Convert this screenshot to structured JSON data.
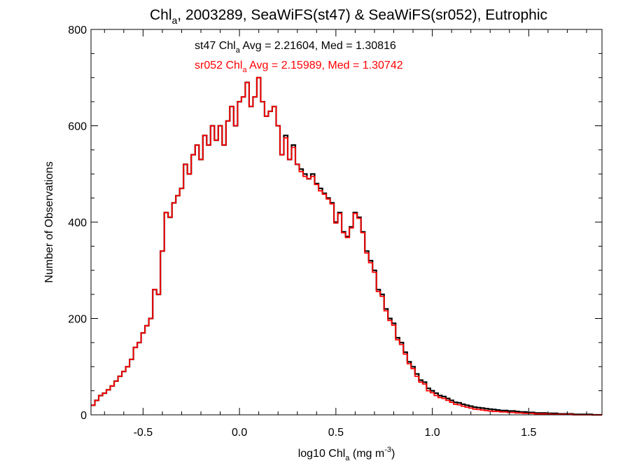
{
  "chart_data": {
    "type": "line",
    "title": {
      "pre": "Chl",
      "sub": "a",
      "post": ", 2003289, SeaWiFS(st47) & SeaWiFS(sr052), Eutrophic"
    },
    "xlabel": {
      "pre": "log10 Chl",
      "sub": "a",
      "mid": " (mg m",
      "sup": "-3",
      "post": ")"
    },
    "ylabel": "Number of Observations",
    "xlim": [
      -0.77,
      1.88
    ],
    "ylim": [
      0,
      800
    ],
    "x_ticks": [
      -0.5,
      0.0,
      0.5,
      1.0,
      1.5
    ],
    "x_tick_labels": [
      "-0.5",
      "0.0",
      "0.5",
      "1.0",
      "1.5"
    ],
    "y_ticks": [
      0,
      200,
      400,
      600,
      800
    ],
    "y_tick_labels": [
      "0",
      "200",
      "400",
      "600",
      "800"
    ],
    "grid": false,
    "bin_width": 0.01,
    "annotations": [
      {
        "name": "st47",
        "pre": "st47 Chl",
        "sub": "a",
        "post": " Avg = 2.21604, Med = 1.30816",
        "color": "#000000"
      },
      {
        "name": "sr052",
        "pre": "sr052 Chl",
        "sub": "a",
        "post": " Avg = 2.15989, Med = 1.30742",
        "color": "#ff0000"
      }
    ],
    "series": [
      {
        "color": "#000000",
        "points": [
          [
            -0.77,
            20
          ],
          [
            -0.75,
            30
          ],
          [
            -0.73,
            40
          ],
          [
            -0.71,
            45
          ],
          [
            -0.69,
            52
          ],
          [
            -0.67,
            60
          ],
          [
            -0.65,
            70
          ],
          [
            -0.63,
            80
          ],
          [
            -0.61,
            90
          ],
          [
            -0.59,
            100
          ],
          [
            -0.57,
            115
          ],
          [
            -0.55,
            140
          ],
          [
            -0.53,
            150
          ],
          [
            -0.51,
            170
          ],
          [
            -0.49,
            185
          ],
          [
            -0.47,
            200
          ],
          [
            -0.45,
            260
          ],
          [
            -0.43,
            250
          ],
          [
            -0.41,
            340
          ],
          [
            -0.39,
            420
          ],
          [
            -0.37,
            410
          ],
          [
            -0.35,
            440
          ],
          [
            -0.33,
            455
          ],
          [
            -0.31,
            470
          ],
          [
            -0.29,
            520
          ],
          [
            -0.27,
            500
          ],
          [
            -0.25,
            540
          ],
          [
            -0.23,
            560
          ],
          [
            -0.21,
            530
          ],
          [
            -0.19,
            580
          ],
          [
            -0.17,
            560
          ],
          [
            -0.15,
            600
          ],
          [
            -0.13,
            570
          ],
          [
            -0.11,
            600
          ],
          [
            -0.09,
            560
          ],
          [
            -0.07,
            610
          ],
          [
            -0.05,
            640
          ],
          [
            -0.03,
            600
          ],
          [
            -0.01,
            650
          ],
          [
            0.01,
            660
          ],
          [
            0.03,
            690
          ],
          [
            0.05,
            640
          ],
          [
            0.07,
            660
          ],
          [
            0.09,
            700
          ],
          [
            0.11,
            650
          ],
          [
            0.13,
            620
          ],
          [
            0.15,
            630
          ],
          [
            0.17,
            640
          ],
          [
            0.19,
            600
          ],
          [
            0.21,
            540
          ],
          [
            0.23,
            580
          ],
          [
            0.25,
            530
          ],
          [
            0.27,
            560
          ],
          [
            0.29,
            520
          ],
          [
            0.31,
            510
          ],
          [
            0.33,
            500
          ],
          [
            0.35,
            490
          ],
          [
            0.37,
            500
          ],
          [
            0.39,
            480
          ],
          [
            0.41,
            470
          ],
          [
            0.43,
            460
          ],
          [
            0.45,
            450
          ],
          [
            0.47,
            440
          ],
          [
            0.49,
            400
          ],
          [
            0.51,
            420
          ],
          [
            0.53,
            380
          ],
          [
            0.55,
            370
          ],
          [
            0.57,
            390
          ],
          [
            0.59,
            420
          ],
          [
            0.61,
            410
          ],
          [
            0.63,
            380
          ],
          [
            0.65,
            340
          ],
          [
            0.67,
            320
          ],
          [
            0.69,
            300
          ],
          [
            0.71,
            260
          ],
          [
            0.73,
            250
          ],
          [
            0.75,
            220
          ],
          [
            0.77,
            200
          ],
          [
            0.79,
            190
          ],
          [
            0.81,
            160
          ],
          [
            0.83,
            150
          ],
          [
            0.85,
            130
          ],
          [
            0.87,
            110
          ],
          [
            0.89,
            100
          ],
          [
            0.91,
            85
          ],
          [
            0.93,
            72
          ],
          [
            0.95,
            68
          ],
          [
            0.97,
            55
          ],
          [
            0.99,
            50
          ],
          [
            1.01,
            45
          ],
          [
            1.03,
            40
          ],
          [
            1.05,
            38
          ],
          [
            1.07,
            34
          ],
          [
            1.09,
            30
          ],
          [
            1.11,
            26
          ],
          [
            1.13,
            25
          ],
          [
            1.15,
            22
          ],
          [
            1.17,
            20
          ],
          [
            1.19,
            18
          ],
          [
            1.21,
            16
          ],
          [
            1.23,
            15
          ],
          [
            1.25,
            14
          ],
          [
            1.27,
            13
          ],
          [
            1.29,
            12
          ],
          [
            1.31,
            11
          ],
          [
            1.33,
            10
          ],
          [
            1.35,
            9
          ],
          [
            1.37,
            9
          ],
          [
            1.39,
            8
          ],
          [
            1.41,
            8
          ],
          [
            1.43,
            7
          ],
          [
            1.45,
            6
          ],
          [
            1.47,
            6
          ],
          [
            1.49,
            5
          ],
          [
            1.51,
            5
          ],
          [
            1.53,
            4
          ],
          [
            1.55,
            4
          ],
          [
            1.57,
            4
          ],
          [
            1.59,
            3
          ],
          [
            1.61,
            3
          ],
          [
            1.63,
            3
          ],
          [
            1.65,
            2
          ],
          [
            1.67,
            2
          ],
          [
            1.69,
            2
          ],
          [
            1.71,
            2
          ],
          [
            1.73,
            1
          ],
          [
            1.75,
            1
          ],
          [
            1.77,
            1
          ],
          [
            1.79,
            1
          ],
          [
            1.81,
            1
          ],
          [
            1.83,
            0
          ],
          [
            1.85,
            0
          ],
          [
            1.88,
            0
          ]
        ]
      },
      {
        "color": "#ff0000",
        "points": [
          [
            -0.77,
            20
          ],
          [
            -0.75,
            30
          ],
          [
            -0.73,
            40
          ],
          [
            -0.71,
            45
          ],
          [
            -0.69,
            52
          ],
          [
            -0.67,
            60
          ],
          [
            -0.65,
            70
          ],
          [
            -0.63,
            80
          ],
          [
            -0.61,
            90
          ],
          [
            -0.59,
            100
          ],
          [
            -0.57,
            115
          ],
          [
            -0.55,
            140
          ],
          [
            -0.53,
            150
          ],
          [
            -0.51,
            170
          ],
          [
            -0.49,
            185
          ],
          [
            -0.47,
            200
          ],
          [
            -0.45,
            260
          ],
          [
            -0.43,
            250
          ],
          [
            -0.41,
            340
          ],
          [
            -0.39,
            420
          ],
          [
            -0.37,
            410
          ],
          [
            -0.35,
            440
          ],
          [
            -0.33,
            455
          ],
          [
            -0.31,
            470
          ],
          [
            -0.29,
            520
          ],
          [
            -0.27,
            500
          ],
          [
            -0.25,
            540
          ],
          [
            -0.23,
            560
          ],
          [
            -0.21,
            530
          ],
          [
            -0.19,
            580
          ],
          [
            -0.17,
            560
          ],
          [
            -0.15,
            600
          ],
          [
            -0.13,
            570
          ],
          [
            -0.11,
            600
          ],
          [
            -0.09,
            560
          ],
          [
            -0.07,
            610
          ],
          [
            -0.05,
            640
          ],
          [
            -0.03,
            600
          ],
          [
            -0.01,
            650
          ],
          [
            0.01,
            660
          ],
          [
            0.03,
            690
          ],
          [
            0.05,
            640
          ],
          [
            0.07,
            660
          ],
          [
            0.09,
            700
          ],
          [
            0.11,
            650
          ],
          [
            0.13,
            620
          ],
          [
            0.15,
            630
          ],
          [
            0.17,
            640
          ],
          [
            0.19,
            600
          ],
          [
            0.21,
            540
          ],
          [
            0.23,
            575
          ],
          [
            0.25,
            530
          ],
          [
            0.27,
            555
          ],
          [
            0.29,
            520
          ],
          [
            0.31,
            505
          ],
          [
            0.33,
            495
          ],
          [
            0.35,
            490
          ],
          [
            0.37,
            495
          ],
          [
            0.39,
            478
          ],
          [
            0.41,
            465
          ],
          [
            0.43,
            458
          ],
          [
            0.45,
            448
          ],
          [
            0.47,
            438
          ],
          [
            0.49,
            398
          ],
          [
            0.51,
            418
          ],
          [
            0.53,
            378
          ],
          [
            0.55,
            368
          ],
          [
            0.57,
            388
          ],
          [
            0.59,
            418
          ],
          [
            0.61,
            408
          ],
          [
            0.63,
            378
          ],
          [
            0.65,
            336
          ],
          [
            0.67,
            316
          ],
          [
            0.69,
            296
          ],
          [
            0.71,
            256
          ],
          [
            0.73,
            246
          ],
          [
            0.75,
            216
          ],
          [
            0.77,
            196
          ],
          [
            0.79,
            186
          ],
          [
            0.81,
            156
          ],
          [
            0.83,
            146
          ],
          [
            0.85,
            126
          ],
          [
            0.87,
            106
          ],
          [
            0.89,
            96
          ],
          [
            0.91,
            80
          ],
          [
            0.93,
            68
          ],
          [
            0.95,
            64
          ],
          [
            0.97,
            50
          ],
          [
            0.99,
            46
          ],
          [
            1.01,
            40
          ],
          [
            1.03,
            36
          ],
          [
            1.05,
            34
          ],
          [
            1.07,
            30
          ],
          [
            1.09,
            26
          ],
          [
            1.11,
            22
          ],
          [
            1.13,
            21
          ],
          [
            1.15,
            18
          ],
          [
            1.17,
            16
          ],
          [
            1.19,
            14
          ],
          [
            1.21,
            12
          ],
          [
            1.23,
            11
          ],
          [
            1.25,
            10
          ],
          [
            1.27,
            9
          ],
          [
            1.29,
            8
          ],
          [
            1.31,
            7
          ],
          [
            1.33,
            7
          ],
          [
            1.35,
            6
          ],
          [
            1.37,
            6
          ],
          [
            1.39,
            5
          ],
          [
            1.41,
            5
          ],
          [
            1.43,
            4
          ],
          [
            1.45,
            4
          ],
          [
            1.47,
            3
          ],
          [
            1.49,
            3
          ],
          [
            1.51,
            3
          ],
          [
            1.53,
            2
          ],
          [
            1.55,
            2
          ],
          [
            1.57,
            2
          ],
          [
            1.59,
            2
          ],
          [
            1.61,
            1
          ],
          [
            1.63,
            1
          ],
          [
            1.65,
            1
          ],
          [
            1.67,
            1
          ],
          [
            1.69,
            1
          ],
          [
            1.71,
            1
          ],
          [
            1.73,
            0
          ],
          [
            1.75,
            0
          ],
          [
            1.77,
            0
          ],
          [
            1.79,
            0
          ],
          [
            1.81,
            0
          ],
          [
            1.83,
            0
          ],
          [
            1.85,
            0
          ],
          [
            1.88,
            0
          ]
        ]
      }
    ]
  }
}
